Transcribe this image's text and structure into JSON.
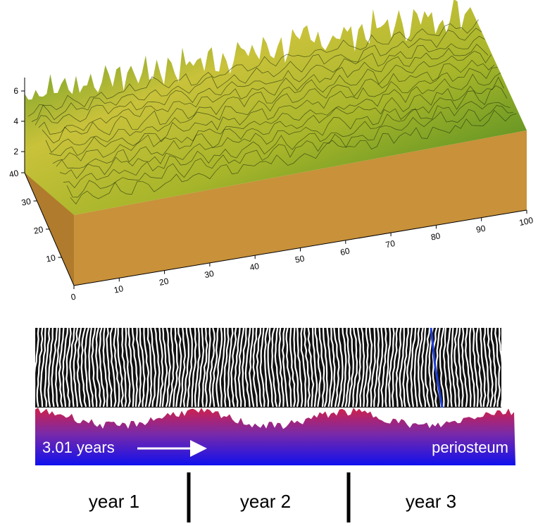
{
  "surface_plot": {
    "xticks": [
      0,
      10,
      20,
      30,
      40,
      50,
      60,
      70,
      80,
      90,
      100
    ],
    "yticks": [
      10,
      20,
      30,
      40
    ],
    "zticks": [
      2,
      4,
      6
    ]
  },
  "strip": {
    "start_label": "3.01 years",
    "end_label": "periosteum"
  },
  "years": [
    "year 1",
    "year 2",
    "year 3"
  ]
}
